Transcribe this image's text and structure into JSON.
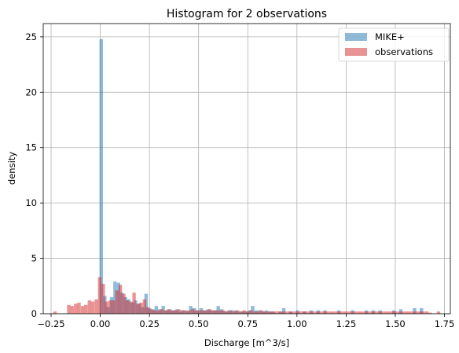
{
  "chart_data": {
    "type": "histogram",
    "title": "Histogram for 2 observations",
    "xlabel": "Discharge [m^3/s]",
    "ylabel": "density",
    "xlim": [
      -0.29,
      1.78
    ],
    "ylim": [
      0,
      26.2
    ],
    "xticks": [
      -0.25,
      0.0,
      0.25,
      0.5,
      0.75,
      1.0,
      1.25,
      1.5,
      1.75
    ],
    "xtick_labels": [
      "−0.25",
      "0.00",
      "0.25",
      "0.50",
      "0.75",
      "1.00",
      "1.25",
      "1.50",
      "1.75"
    ],
    "yticks": [
      0,
      5,
      10,
      15,
      20,
      25
    ],
    "ytick_labels": [
      "0",
      "5",
      "10",
      "15",
      "20",
      "25"
    ],
    "grid": true,
    "legend_position": "top-right",
    "bin_width": 0.0175,
    "series": [
      {
        "name": "MIKE+",
        "color": "#1f77b4",
        "opacity": 0.5,
        "bins": [
          [
            0.005,
            24.8
          ],
          [
            0.023,
            1.6
          ],
          [
            0.04,
            0.6
          ],
          [
            0.058,
            1.5
          ],
          [
            0.075,
            2.9
          ],
          [
            0.093,
            2.8
          ],
          [
            0.11,
            1.9
          ],
          [
            0.128,
            1.5
          ],
          [
            0.145,
            1.3
          ],
          [
            0.163,
            1.0
          ],
          [
            0.18,
            1.2
          ],
          [
            0.198,
            0.9
          ],
          [
            0.215,
            0.6
          ],
          [
            0.233,
            1.8
          ],
          [
            0.25,
            0.5
          ],
          [
            0.268,
            0.4
          ],
          [
            0.285,
            0.7
          ],
          [
            0.303,
            0.4
          ],
          [
            0.32,
            0.7
          ],
          [
            0.338,
            0.3
          ],
          [
            0.355,
            0.4
          ],
          [
            0.373,
            0.3
          ],
          [
            0.39,
            0.4
          ],
          [
            0.408,
            0.2
          ],
          [
            0.425,
            0.3
          ],
          [
            0.443,
            0.2
          ],
          [
            0.46,
            0.7
          ],
          [
            0.478,
            0.5
          ],
          [
            0.495,
            0.3
          ],
          [
            0.513,
            0.5
          ],
          [
            0.53,
            0.3
          ],
          [
            0.548,
            0.4
          ],
          [
            0.565,
            0.3
          ],
          [
            0.583,
            0.3
          ],
          [
            0.6,
            0.7
          ],
          [
            0.618,
            0.4
          ],
          [
            0.635,
            0.2
          ],
          [
            0.653,
            0.3
          ],
          [
            0.67,
            0.3
          ],
          [
            0.688,
            0.3
          ],
          [
            0.705,
            0.2
          ],
          [
            0.723,
            0.2
          ],
          [
            0.74,
            0.2
          ],
          [
            0.758,
            0.3
          ],
          [
            0.775,
            0.7
          ],
          [
            0.793,
            0.3
          ],
          [
            0.81,
            0.3
          ],
          [
            0.828,
            0.2
          ],
          [
            0.845,
            0.3
          ],
          [
            0.863,
            0.2
          ],
          [
            0.88,
            0.2
          ],
          [
            0.915,
            0.2
          ],
          [
            0.933,
            0.5
          ],
          [
            0.968,
            0.2
          ],
          [
            1.003,
            0.3
          ],
          [
            1.038,
            0.2
          ],
          [
            1.073,
            0.3
          ],
          [
            1.108,
            0.3
          ],
          [
            1.143,
            0.3
          ],
          [
            1.213,
            0.3
          ],
          [
            1.283,
            0.3
          ],
          [
            1.353,
            0.3
          ],
          [
            1.388,
            0.3
          ],
          [
            1.423,
            0.3
          ],
          [
            1.493,
            0.3
          ],
          [
            1.528,
            0.4
          ],
          [
            1.598,
            0.5
          ],
          [
            1.633,
            0.5
          ]
        ]
      },
      {
        "name": "observations",
        "color": "#d62728",
        "opacity": 0.5,
        "bins": [
          [
            -0.23,
            0.2
          ],
          [
            -0.16,
            0.8
          ],
          [
            -0.143,
            0.7
          ],
          [
            -0.125,
            0.9
          ],
          [
            -0.108,
            1.0
          ],
          [
            -0.09,
            0.7
          ],
          [
            -0.073,
            0.8
          ],
          [
            -0.055,
            1.2
          ],
          [
            -0.038,
            1.1
          ],
          [
            -0.02,
            1.3
          ],
          [
            -0.003,
            3.3
          ],
          [
            0.015,
            2.7
          ],
          [
            0.032,
            1.1
          ],
          [
            0.05,
            1.2
          ],
          [
            0.067,
            1.2
          ],
          [
            0.085,
            2.1
          ],
          [
            0.102,
            2.6
          ],
          [
            0.12,
            1.8
          ],
          [
            0.137,
            1.2
          ],
          [
            0.155,
            1.1
          ],
          [
            0.172,
            1.9
          ],
          [
            0.19,
            0.9
          ],
          [
            0.207,
            1.0
          ],
          [
            0.225,
            1.3
          ],
          [
            0.242,
            0.6
          ],
          [
            0.26,
            0.4
          ],
          [
            0.277,
            0.3
          ],
          [
            0.295,
            0.3
          ],
          [
            0.312,
            0.4
          ],
          [
            0.33,
            0.3
          ],
          [
            0.347,
            0.4
          ],
          [
            0.365,
            0.3
          ],
          [
            0.382,
            0.3
          ],
          [
            0.4,
            0.4
          ],
          [
            0.417,
            0.3
          ],
          [
            0.435,
            0.3
          ],
          [
            0.452,
            0.3
          ],
          [
            0.47,
            0.4
          ],
          [
            0.487,
            0.3
          ],
          [
            0.505,
            0.3
          ],
          [
            0.522,
            0.3
          ],
          [
            0.54,
            0.3
          ],
          [
            0.557,
            0.4
          ],
          [
            0.575,
            0.3
          ],
          [
            0.592,
            0.3
          ],
          [
            0.61,
            0.3
          ],
          [
            0.627,
            0.3
          ],
          [
            0.645,
            0.2
          ],
          [
            0.662,
            0.3
          ],
          [
            0.68,
            0.2
          ],
          [
            0.697,
            0.3
          ],
          [
            0.715,
            0.2
          ],
          [
            0.732,
            0.3
          ],
          [
            0.75,
            0.2
          ],
          [
            0.767,
            0.3
          ],
          [
            0.785,
            0.2
          ],
          [
            0.802,
            0.2
          ],
          [
            0.82,
            0.3
          ],
          [
            0.837,
            0.2
          ],
          [
            0.855,
            0.2
          ],
          [
            0.872,
            0.2
          ],
          [
            0.89,
            0.2
          ],
          [
            0.907,
            0.2
          ],
          [
            0.925,
            0.2
          ],
          [
            0.942,
            0.2
          ],
          [
            0.96,
            0.2
          ],
          [
            0.977,
            0.2
          ],
          [
            0.995,
            0.2
          ],
          [
            1.012,
            0.2
          ],
          [
            1.03,
            0.2
          ],
          [
            1.047,
            0.2
          ],
          [
            1.065,
            0.2
          ],
          [
            1.082,
            0.2
          ],
          [
            1.1,
            0.2
          ],
          [
            1.117,
            0.2
          ],
          [
            1.135,
            0.2
          ],
          [
            1.152,
            0.2
          ],
          [
            1.17,
            0.2
          ],
          [
            1.187,
            0.2
          ],
          [
            1.205,
            0.2
          ],
          [
            1.222,
            0.2
          ],
          [
            1.24,
            0.2
          ],
          [
            1.257,
            0.2
          ],
          [
            1.275,
            0.2
          ],
          [
            1.292,
            0.2
          ],
          [
            1.31,
            0.2
          ],
          [
            1.327,
            0.2
          ],
          [
            1.345,
            0.2
          ],
          [
            1.362,
            0.2
          ],
          [
            1.38,
            0.2
          ],
          [
            1.397,
            0.2
          ],
          [
            1.415,
            0.2
          ],
          [
            1.432,
            0.2
          ],
          [
            1.45,
            0.2
          ],
          [
            1.467,
            0.2
          ],
          [
            1.485,
            0.2
          ],
          [
            1.502,
            0.2
          ],
          [
            1.52,
            0.2
          ],
          [
            1.537,
            0.2
          ],
          [
            1.555,
            0.2
          ],
          [
            1.572,
            0.2
          ],
          [
            1.59,
            0.2
          ],
          [
            1.607,
            0.2
          ],
          [
            1.625,
            0.2
          ],
          [
            1.642,
            0.2
          ],
          [
            1.66,
            0.2
          ],
          [
            1.677,
            0.1
          ],
          [
            1.72,
            0.2
          ]
        ]
      }
    ]
  }
}
